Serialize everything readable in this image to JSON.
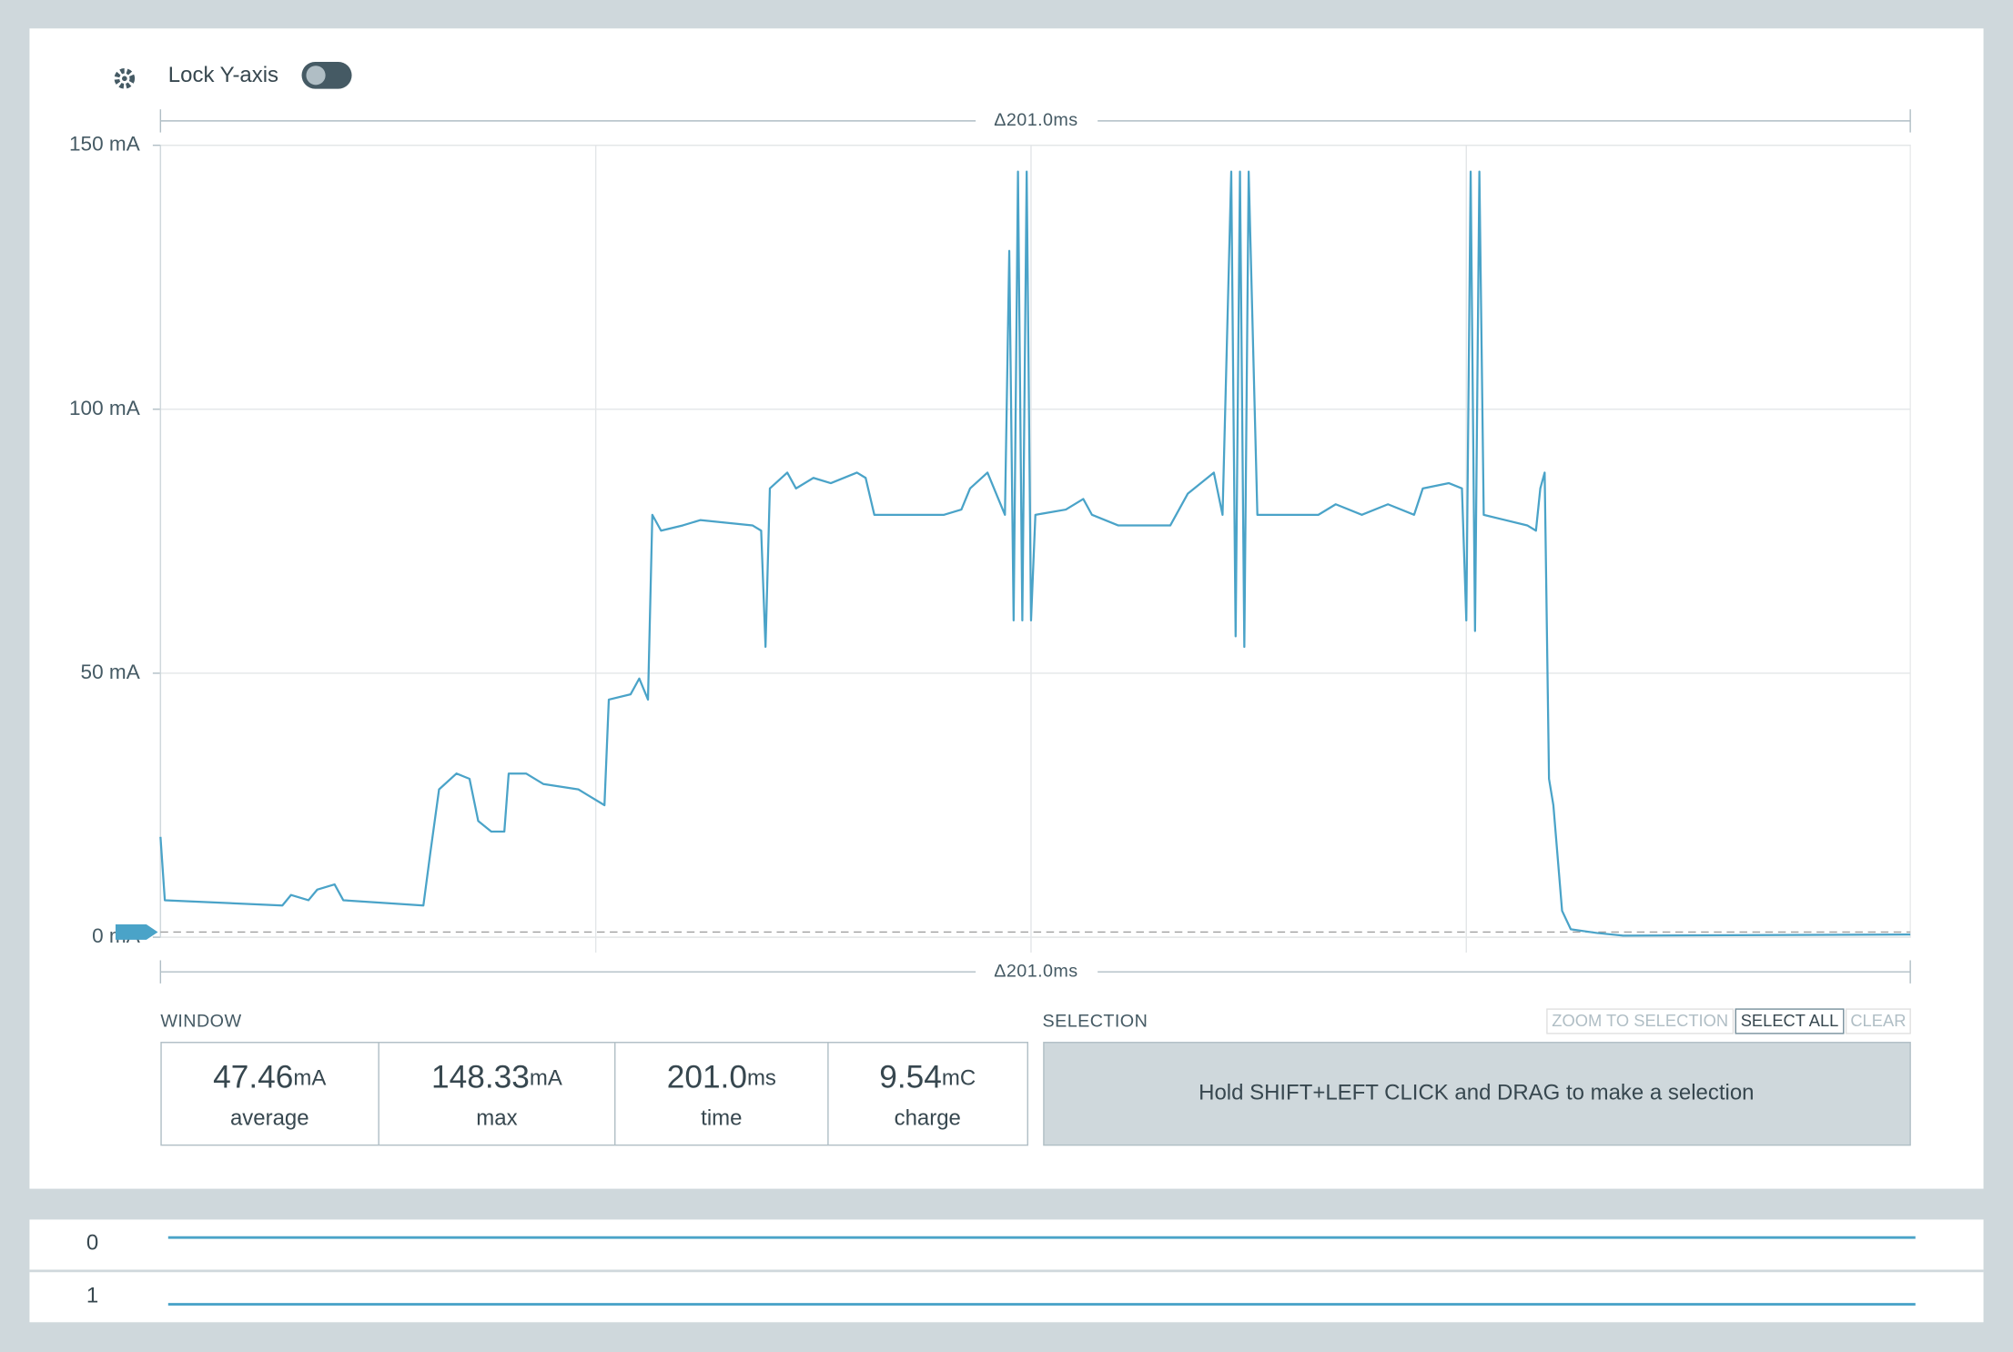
{
  "toolbar": {
    "lock_label": "Lock Y-axis"
  },
  "chart_data": {
    "type": "line",
    "color": "#4aa3c8",
    "annotations": [
      "Δ201.0ms",
      "Δ201.0ms"
    ],
    "xlim": [
      0,
      201
    ],
    "xgrid": [
      50,
      100,
      150
    ],
    "ylim": [
      0,
      150
    ],
    "yticks": [
      {
        "value": 0,
        "label": "0 mA"
      },
      {
        "value": 50,
        "label": "50 mA"
      },
      {
        "value": 100,
        "label": "100 mA"
      },
      {
        "value": 150,
        "label": "150 mA"
      }
    ],
    "grid": true,
    "x": [
      0,
      0.5,
      14,
      15,
      17,
      18,
      20,
      21,
      30.2,
      31,
      32,
      34,
      35.5,
      36.5,
      38,
      39.5,
      40,
      42,
      44,
      48,
      49,
      51,
      51.5,
      54,
      55,
      56,
      56.5,
      57.5,
      60,
      62,
      68,
      69,
      69.5,
      70,
      72,
      73,
      75,
      77,
      80,
      81,
      82,
      90,
      92,
      93,
      95,
      96,
      97,
      97.5,
      98,
      98.5,
      99,
      99.5,
      100,
      100.5,
      104,
      106,
      107,
      110,
      116,
      118,
      121,
      122,
      123,
      123.5,
      124,
      124.5,
      125,
      126,
      130,
      133,
      135,
      138,
      141,
      144,
      145,
      148,
      149.5,
      150,
      150.5,
      151,
      151.5,
      152,
      157,
      158,
      158.5,
      159,
      159.5,
      160,
      161,
      162,
      165,
      168,
      201
    ],
    "values": [
      19,
      7,
      6,
      8,
      7,
      9,
      10,
      7,
      6,
      16,
      28,
      31,
      30,
      22,
      20,
      20,
      31,
      31,
      29,
      28,
      27,
      25,
      45,
      46,
      49,
      45,
      80,
      77,
      78,
      79,
      78,
      77,
      55,
      85,
      88,
      85,
      87,
      86,
      88,
      87,
      80,
      80,
      81,
      85,
      88,
      84,
      80,
      130,
      60,
      145,
      60,
      145,
      60,
      80,
      81,
      83,
      80,
      78,
      78,
      84,
      88,
      80,
      145,
      57,
      145,
      55,
      145,
      80,
      80,
      80,
      82,
      80,
      82,
      80,
      85,
      86,
      85,
      60,
      145,
      58,
      145,
      80,
      78,
      77,
      85,
      88,
      30,
      25,
      5,
      1.5,
      0.8,
      0.3,
      0.5
    ]
  },
  "window": {
    "title": "WINDOW",
    "stats": [
      {
        "value": "47.46",
        "unit": "mA",
        "label": "average"
      },
      {
        "value": "148.33",
        "unit": "mA",
        "label": "max"
      },
      {
        "value": "201.0",
        "unit": "ms",
        "label": "time"
      },
      {
        "value": "9.54",
        "unit": "mC",
        "label": "charge"
      }
    ]
  },
  "selection": {
    "title": "SELECTION",
    "buttons": [
      "ZOOM TO SELECTION",
      "SELECT ALL",
      "CLEAR"
    ],
    "hint": "Hold SHIFT+LEFT CLICK and DRAG to make a selection"
  },
  "digital_channels": [
    "0",
    "1"
  ]
}
